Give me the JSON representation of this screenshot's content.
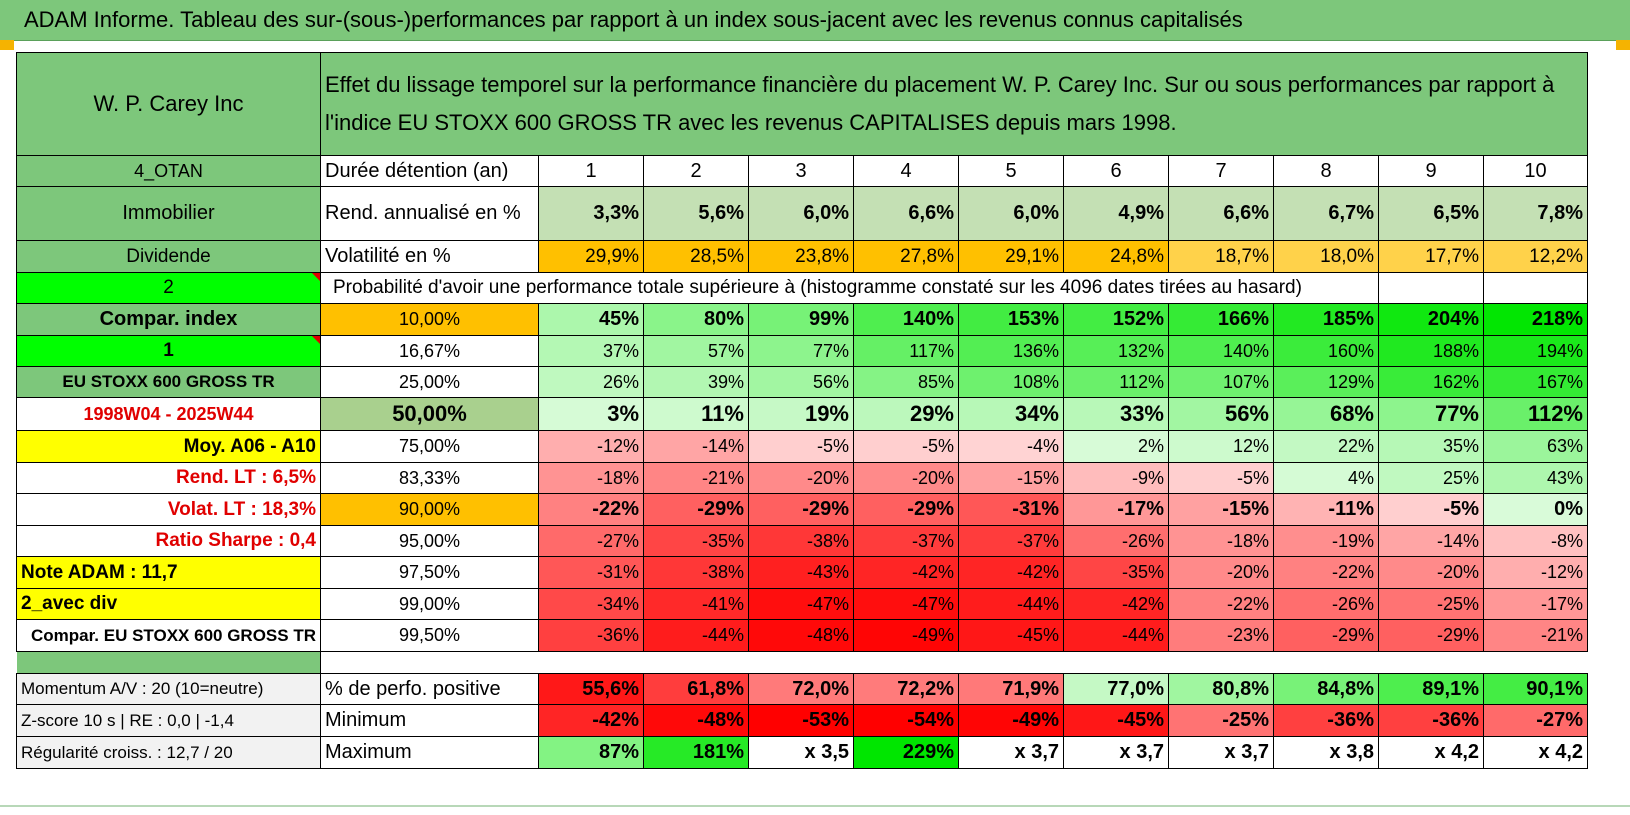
{
  "title": "ADAM Informe. Tableau des sur-(sous-)performances par rapport à un index sous-jacent avec les revenus connus capitalisés",
  "colors": {
    "green_header": "#7dc77b",
    "bright_green": "#00ff00",
    "orange": "#ffc000",
    "yellow": "#ffff00",
    "label_red": "#e00000"
  },
  "header": {
    "company": "W. P. Carey Inc",
    "description": "Effet du lissage temporel sur la performance financière du placement W. P. Carey Inc. Sur ou sous performances par rapport à l'indice EU STOXX 600 GROSS TR avec les revenus CAPITALISES depuis mars 1998."
  },
  "horizon_label": "Durée détention (an)",
  "horizons": [
    "1",
    "2",
    "3",
    "4",
    "5",
    "6",
    "7",
    "8",
    "9",
    "10"
  ],
  "left_labels": {
    "otan": "4_OTAN",
    "sector": "Immobilier",
    "type": "Dividende",
    "n2": "2",
    "compar_index": "Compar. index",
    "n1": "1",
    "index_name": "EU STOXX 600 GROSS TR",
    "period": "1998W04 - 2025W44",
    "moy": "Moy. A06 - A10",
    "rend_lt": "Rend. LT :    6,5%",
    "volat_lt": "Volat. LT :    18,3%",
    "sharpe": "Ratio Sharpe :    0,4",
    "note": "Note ADAM : 11,7",
    "avec_div": "2_avec div",
    "compar_full": "Compar. EU STOXX 600 GROSS TR",
    "momentum": "Momentum A/V : 20 (10=neutre)",
    "zscore": "Z-score 10 s | RE : 0,0 | -1,4",
    "regularite": "Régularité croiss. : 12,7 / 20"
  },
  "rend_label": "Rend. annualisé en %",
  "rend": [
    "3,3%",
    "5,6%",
    "6,0%",
    "6,6%",
    "6,0%",
    "4,9%",
    "6,6%",
    "6,7%",
    "6,5%",
    "7,8%"
  ],
  "vol_label": "Volatilité en %",
  "vol": [
    "29,9%",
    "28,5%",
    "23,8%",
    "27,8%",
    "29,1%",
    "24,8%",
    "18,7%",
    "18,0%",
    "17,7%",
    "12,2%"
  ],
  "prob_header": "Probabilité d'avoir une performance totale supérieure à (histogramme constaté sur les 4096 dates tirées au hasard)",
  "percentiles": [
    {
      "p": "10,00%",
      "values": [
        "45%",
        "80%",
        "99%",
        "140%",
        "153%",
        "152%",
        "166%",
        "185%",
        "204%",
        "218%"
      ]
    },
    {
      "p": "16,67%",
      "values": [
        "37%",
        "57%",
        "77%",
        "117%",
        "136%",
        "132%",
        "140%",
        "160%",
        "188%",
        "194%"
      ]
    },
    {
      "p": "25,00%",
      "values": [
        "26%",
        "39%",
        "56%",
        "85%",
        "108%",
        "112%",
        "107%",
        "129%",
        "162%",
        "167%"
      ]
    },
    {
      "p": "50,00%",
      "values": [
        "3%",
        "11%",
        "19%",
        "29%",
        "34%",
        "33%",
        "56%",
        "68%",
        "77%",
        "112%"
      ]
    },
    {
      "p": "75,00%",
      "values": [
        "-12%",
        "-14%",
        "-5%",
        "-5%",
        "-4%",
        "2%",
        "12%",
        "22%",
        "35%",
        "63%"
      ]
    },
    {
      "p": "83,33%",
      "values": [
        "-18%",
        "-21%",
        "-20%",
        "-20%",
        "-15%",
        "-9%",
        "-5%",
        "4%",
        "25%",
        "43%"
      ]
    },
    {
      "p": "90,00%",
      "values": [
        "-22%",
        "-29%",
        "-29%",
        "-29%",
        "-31%",
        "-17%",
        "-15%",
        "-11%",
        "-5%",
        "0%"
      ]
    },
    {
      "p": "95,00%",
      "values": [
        "-27%",
        "-35%",
        "-38%",
        "-37%",
        "-37%",
        "-26%",
        "-18%",
        "-19%",
        "-14%",
        "-8%"
      ]
    },
    {
      "p": "97,50%",
      "values": [
        "-31%",
        "-38%",
        "-43%",
        "-42%",
        "-42%",
        "-35%",
        "-20%",
        "-22%",
        "-20%",
        "-12%"
      ]
    },
    {
      "p": "99,00%",
      "values": [
        "-34%",
        "-41%",
        "-47%",
        "-47%",
        "-44%",
        "-42%",
        "-22%",
        "-26%",
        "-25%",
        "-17%"
      ]
    },
    {
      "p": "99,50%",
      "values": [
        "-36%",
        "-44%",
        "-48%",
        "-49%",
        "-45%",
        "-44%",
        "-23%",
        "-29%",
        "-29%",
        "-21%"
      ]
    }
  ],
  "positive_label": "% de perfo. positive",
  "positive": [
    "55,6%",
    "61,8%",
    "72,0%",
    "72,2%",
    "71,9%",
    "77,0%",
    "80,8%",
    "84,8%",
    "89,1%",
    "90,1%"
  ],
  "min_label": "Minimum",
  "minimum": [
    "-42%",
    "-48%",
    "-53%",
    "-54%",
    "-49%",
    "-45%",
    "-25%",
    "-36%",
    "-36%",
    "-27%"
  ],
  "max_label": "Maximum",
  "maximum": [
    "87%",
    "181%",
    "x 3,5",
    "229%",
    "x 3,7",
    "x 3,7",
    "x 3,7",
    "x 3,8",
    "x 4,2",
    "x 4,2"
  ]
}
